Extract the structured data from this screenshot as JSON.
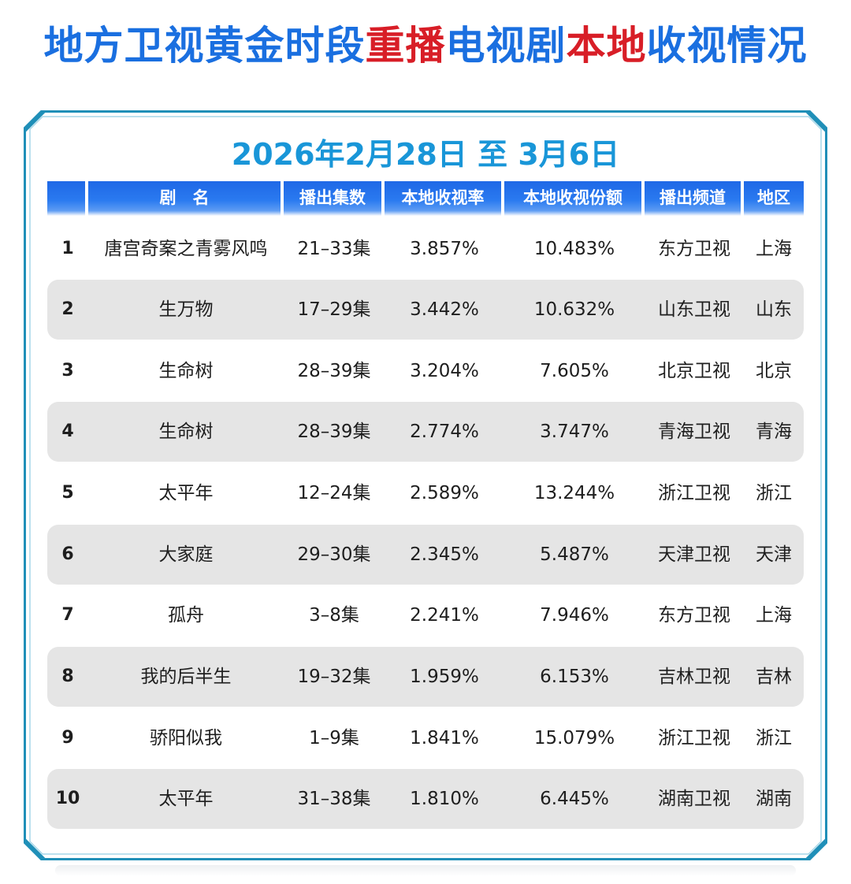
{
  "title": {
    "segments": [
      {
        "text": "地方卫视黄金时段",
        "color": "#1a6fe0"
      },
      {
        "text": "重播",
        "color": "#d81e27"
      },
      {
        "text": "电视剧",
        "color": "#1a6fe0"
      },
      {
        "text": "本地",
        "color": "#d81e27"
      },
      {
        "text": "收视情况",
        "color": "#1a6fe0"
      }
    ]
  },
  "date_range": "2026年2月28日 至 3月6日",
  "colors": {
    "header_blue": "#1f68e6",
    "frame_teal": "#1f8fb8",
    "row_shade": "#e5e5e5",
    "accent_red": "#d81e27"
  },
  "table": {
    "columns": [
      "",
      "剧　名",
      "播出集数",
      "本地收视率",
      "本地收视份额",
      "播出频道",
      "地区"
    ],
    "rows": [
      {
        "rank": "1",
        "name": "唐宫奇案之青雾风鸣",
        "episodes": "21–33集",
        "rating": "3.857%",
        "share": "10.483%",
        "channel": "东方卫视",
        "region": "上海"
      },
      {
        "rank": "2",
        "name": "生万物",
        "episodes": "17–29集",
        "rating": "3.442%",
        "share": "10.632%",
        "channel": "山东卫视",
        "region": "山东"
      },
      {
        "rank": "3",
        "name": "生命树",
        "episodes": "28–39集",
        "rating": "3.204%",
        "share": "7.605%",
        "channel": "北京卫视",
        "region": "北京"
      },
      {
        "rank": "4",
        "name": "生命树",
        "episodes": "28–39集",
        "rating": "2.774%",
        "share": "3.747%",
        "channel": "青海卫视",
        "region": "青海"
      },
      {
        "rank": "5",
        "name": "太平年",
        "episodes": "12–24集",
        "rating": "2.589%",
        "share": "13.244%",
        "channel": "浙江卫视",
        "region": "浙江"
      },
      {
        "rank": "6",
        "name": "大家庭",
        "episodes": "29–30集",
        "rating": "2.345%",
        "share": "5.487%",
        "channel": "天津卫视",
        "region": "天津"
      },
      {
        "rank": "7",
        "name": "孤舟",
        "episodes": "3–8集",
        "rating": "2.241%",
        "share": "7.946%",
        "channel": "东方卫视",
        "region": "上海"
      },
      {
        "rank": "8",
        "name": "我的后半生",
        "episodes": "19–32集",
        "rating": "1.959%",
        "share": "6.153%",
        "channel": "吉林卫视",
        "region": "吉林"
      },
      {
        "rank": "9",
        "name": "骄阳似我",
        "episodes": "1–9集",
        "rating": "1.841%",
        "share": "15.079%",
        "channel": "浙江卫视",
        "region": "浙江"
      },
      {
        "rank": "10",
        "name": "太平年",
        "episodes": "31–38集",
        "rating": "1.810%",
        "share": "6.445%",
        "channel": "湖南卫视",
        "region": "湖南"
      }
    ]
  }
}
